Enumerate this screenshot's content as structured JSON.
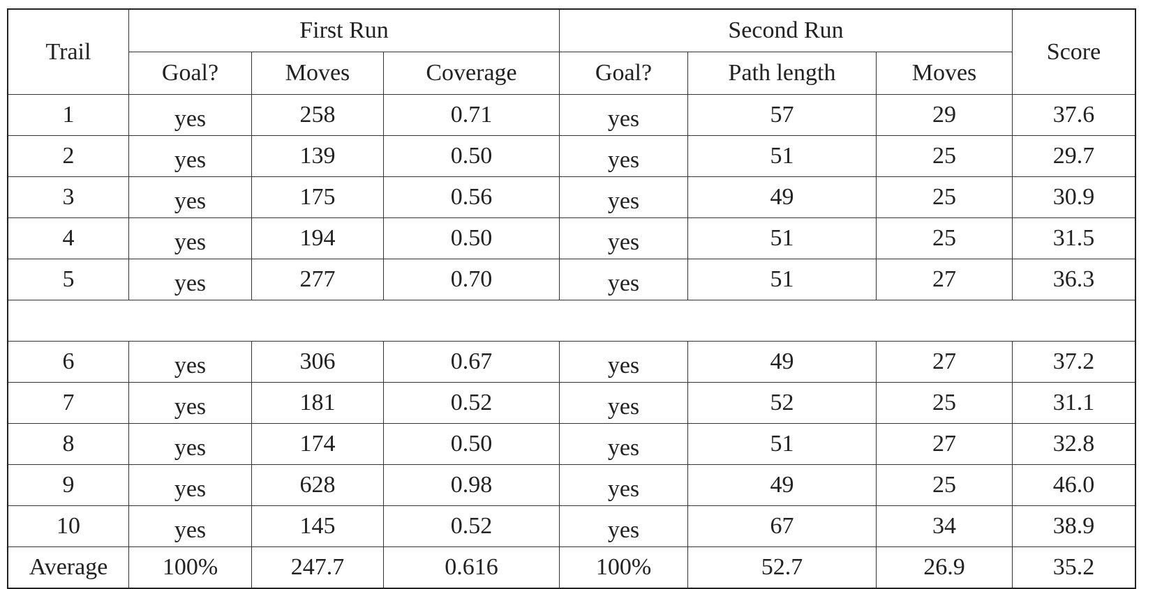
{
  "table": {
    "header": {
      "trail": "Trail",
      "first_run": "First Run",
      "second_run": "Second Run",
      "score": "Score",
      "first_goal": "Goal?",
      "first_moves": "Moves",
      "first_coverage": "Coverage",
      "second_goal": "Goal?",
      "second_path_length": "Path length",
      "second_moves": "Moves"
    },
    "rows_group1": [
      [
        "1",
        "yes",
        "258",
        "0.71",
        "yes",
        "57",
        "29",
        "37.6"
      ],
      [
        "2",
        "yes",
        "139",
        "0.50",
        "yes",
        "51",
        "25",
        "29.7"
      ],
      [
        "3",
        "yes",
        "175",
        "0.56",
        "yes",
        "49",
        "25",
        "30.9"
      ],
      [
        "4",
        "yes",
        "194",
        "0.50",
        "yes",
        "51",
        "25",
        "31.5"
      ],
      [
        "5",
        "yes",
        "277",
        "0.70",
        "yes",
        "51",
        "27",
        "36.3"
      ]
    ],
    "rows_group2": [
      [
        "6",
        "yes",
        "306",
        "0.67",
        "yes",
        "49",
        "27",
        "37.2"
      ],
      [
        "7",
        "yes",
        "181",
        "0.52",
        "yes",
        "52",
        "25",
        "31.1"
      ],
      [
        "8",
        "yes",
        "174",
        "0.50",
        "yes",
        "51",
        "27",
        "32.8"
      ],
      [
        "9",
        "yes",
        "628",
        "0.98",
        "yes",
        "49",
        "25",
        "46.0"
      ],
      [
        "10",
        "yes",
        "145",
        "0.52",
        "yes",
        "67",
        "34",
        "38.9"
      ]
    ],
    "average": [
      "Average",
      "100%",
      "247.7",
      "0.616",
      "100%",
      "52.7",
      "26.9",
      "35.2"
    ]
  }
}
